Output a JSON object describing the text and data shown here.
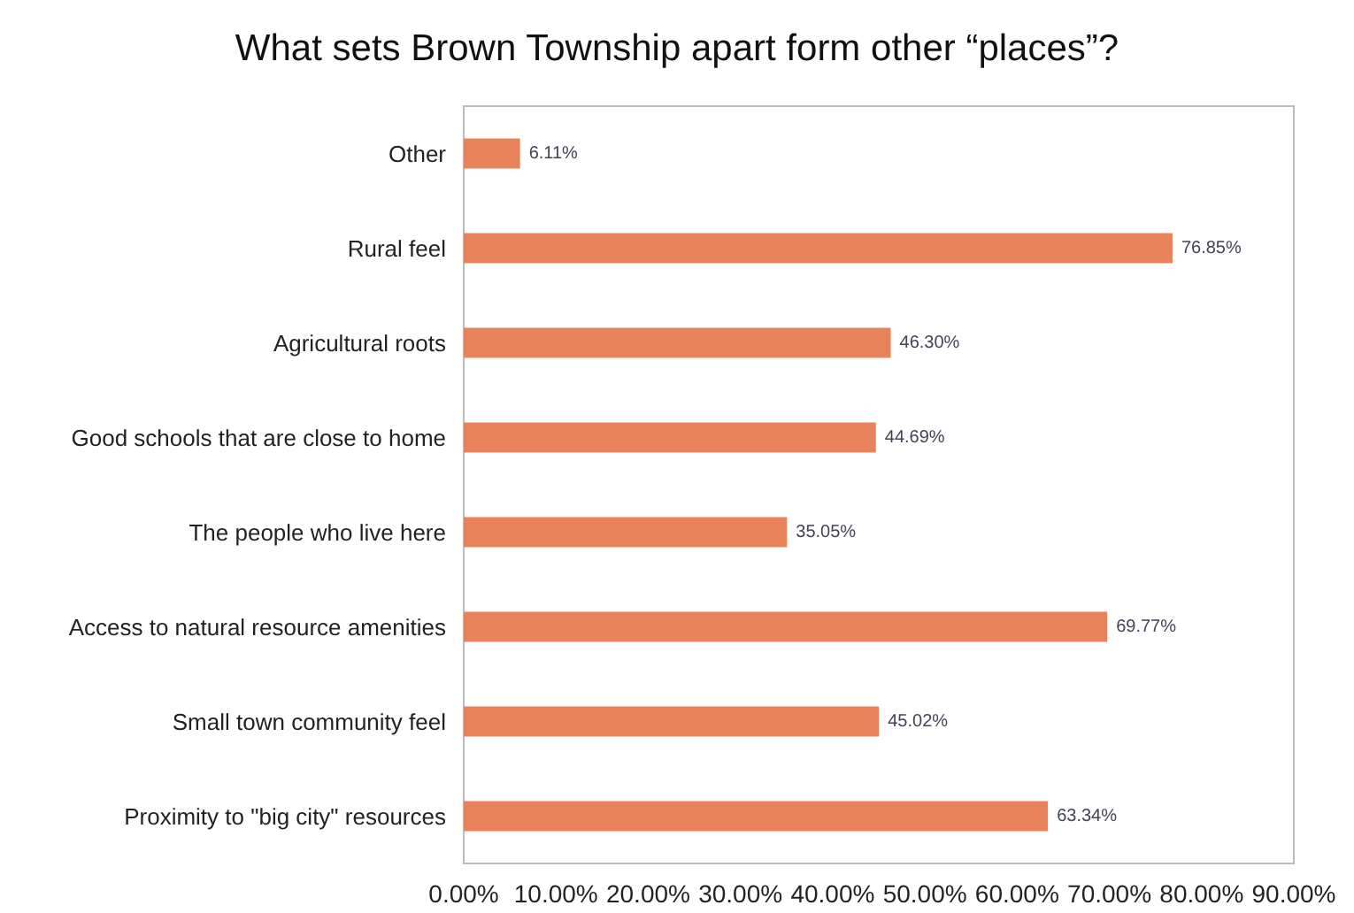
{
  "chart_data": {
    "type": "bar",
    "orientation": "horizontal",
    "title": "What sets Brown Township apart form other “places”?",
    "categories": [
      "Other",
      "Rural feel",
      "Agricultural roots",
      "Good schools that are close to home",
      "The people who live here",
      "Access to natural resource amenities",
      "Small town community feel",
      "Proximity to \"big city\" resources"
    ],
    "values": [
      6.11,
      76.85,
      46.3,
      44.69,
      35.05,
      69.77,
      45.02,
      63.34
    ],
    "value_labels": [
      "6.11%",
      "76.85%",
      "46.30%",
      "44.69%",
      "35.05%",
      "69.77%",
      "45.02%",
      "63.34%"
    ],
    "color": "#e8825a",
    "xlim": [
      0,
      90
    ],
    "xticks": [
      {
        "value": 0,
        "label": "0.00%"
      },
      {
        "value": 10,
        "label": "10.00%"
      },
      {
        "value": 20,
        "label": "20.00%"
      },
      {
        "value": 30,
        "label": "30.00%"
      },
      {
        "value": 40,
        "label": "40.00%"
      },
      {
        "value": 50,
        "label": "50.00%"
      },
      {
        "value": 60,
        "label": "60.00%"
      },
      {
        "value": 70,
        "label": "70.00%"
      },
      {
        "value": 80,
        "label": "80.00%"
      },
      {
        "value": 90,
        "label": "90.00%"
      }
    ],
    "grid": false
  }
}
